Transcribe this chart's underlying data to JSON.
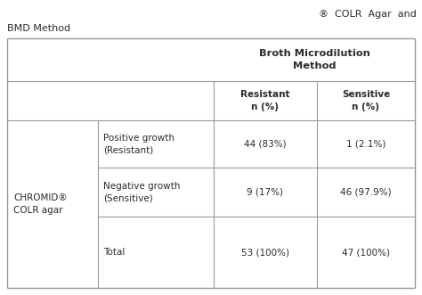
{
  "title_right": "®  COLR  Agar  and",
  "title_left": "BMD Method",
  "header_main": "Broth Microdilution\nMethod",
  "col1_header": "Resistant\nn (%)",
  "col2_header": "Sensitive\nn (%)",
  "row_label_left": "CHROMID®\nCOLR agar",
  "rows": [
    {
      "sub_label": "Positive growth\n(Resistant)",
      "val1": "44 (83%)",
      "val2": "1 (2.1%)"
    },
    {
      "sub_label": "Negative growth\n(Sensitive)",
      "val1": "9 (17%)",
      "val2": "46 (97.9%)"
    },
    {
      "sub_label": "Total",
      "val1": "53 (100%)",
      "val2": "47 (100%)"
    }
  ],
  "bg_color": "#ffffff",
  "text_color": "#2b2b2b",
  "line_color": "#999999",
  "font_size": 7.5,
  "header_font_size": 8.2
}
